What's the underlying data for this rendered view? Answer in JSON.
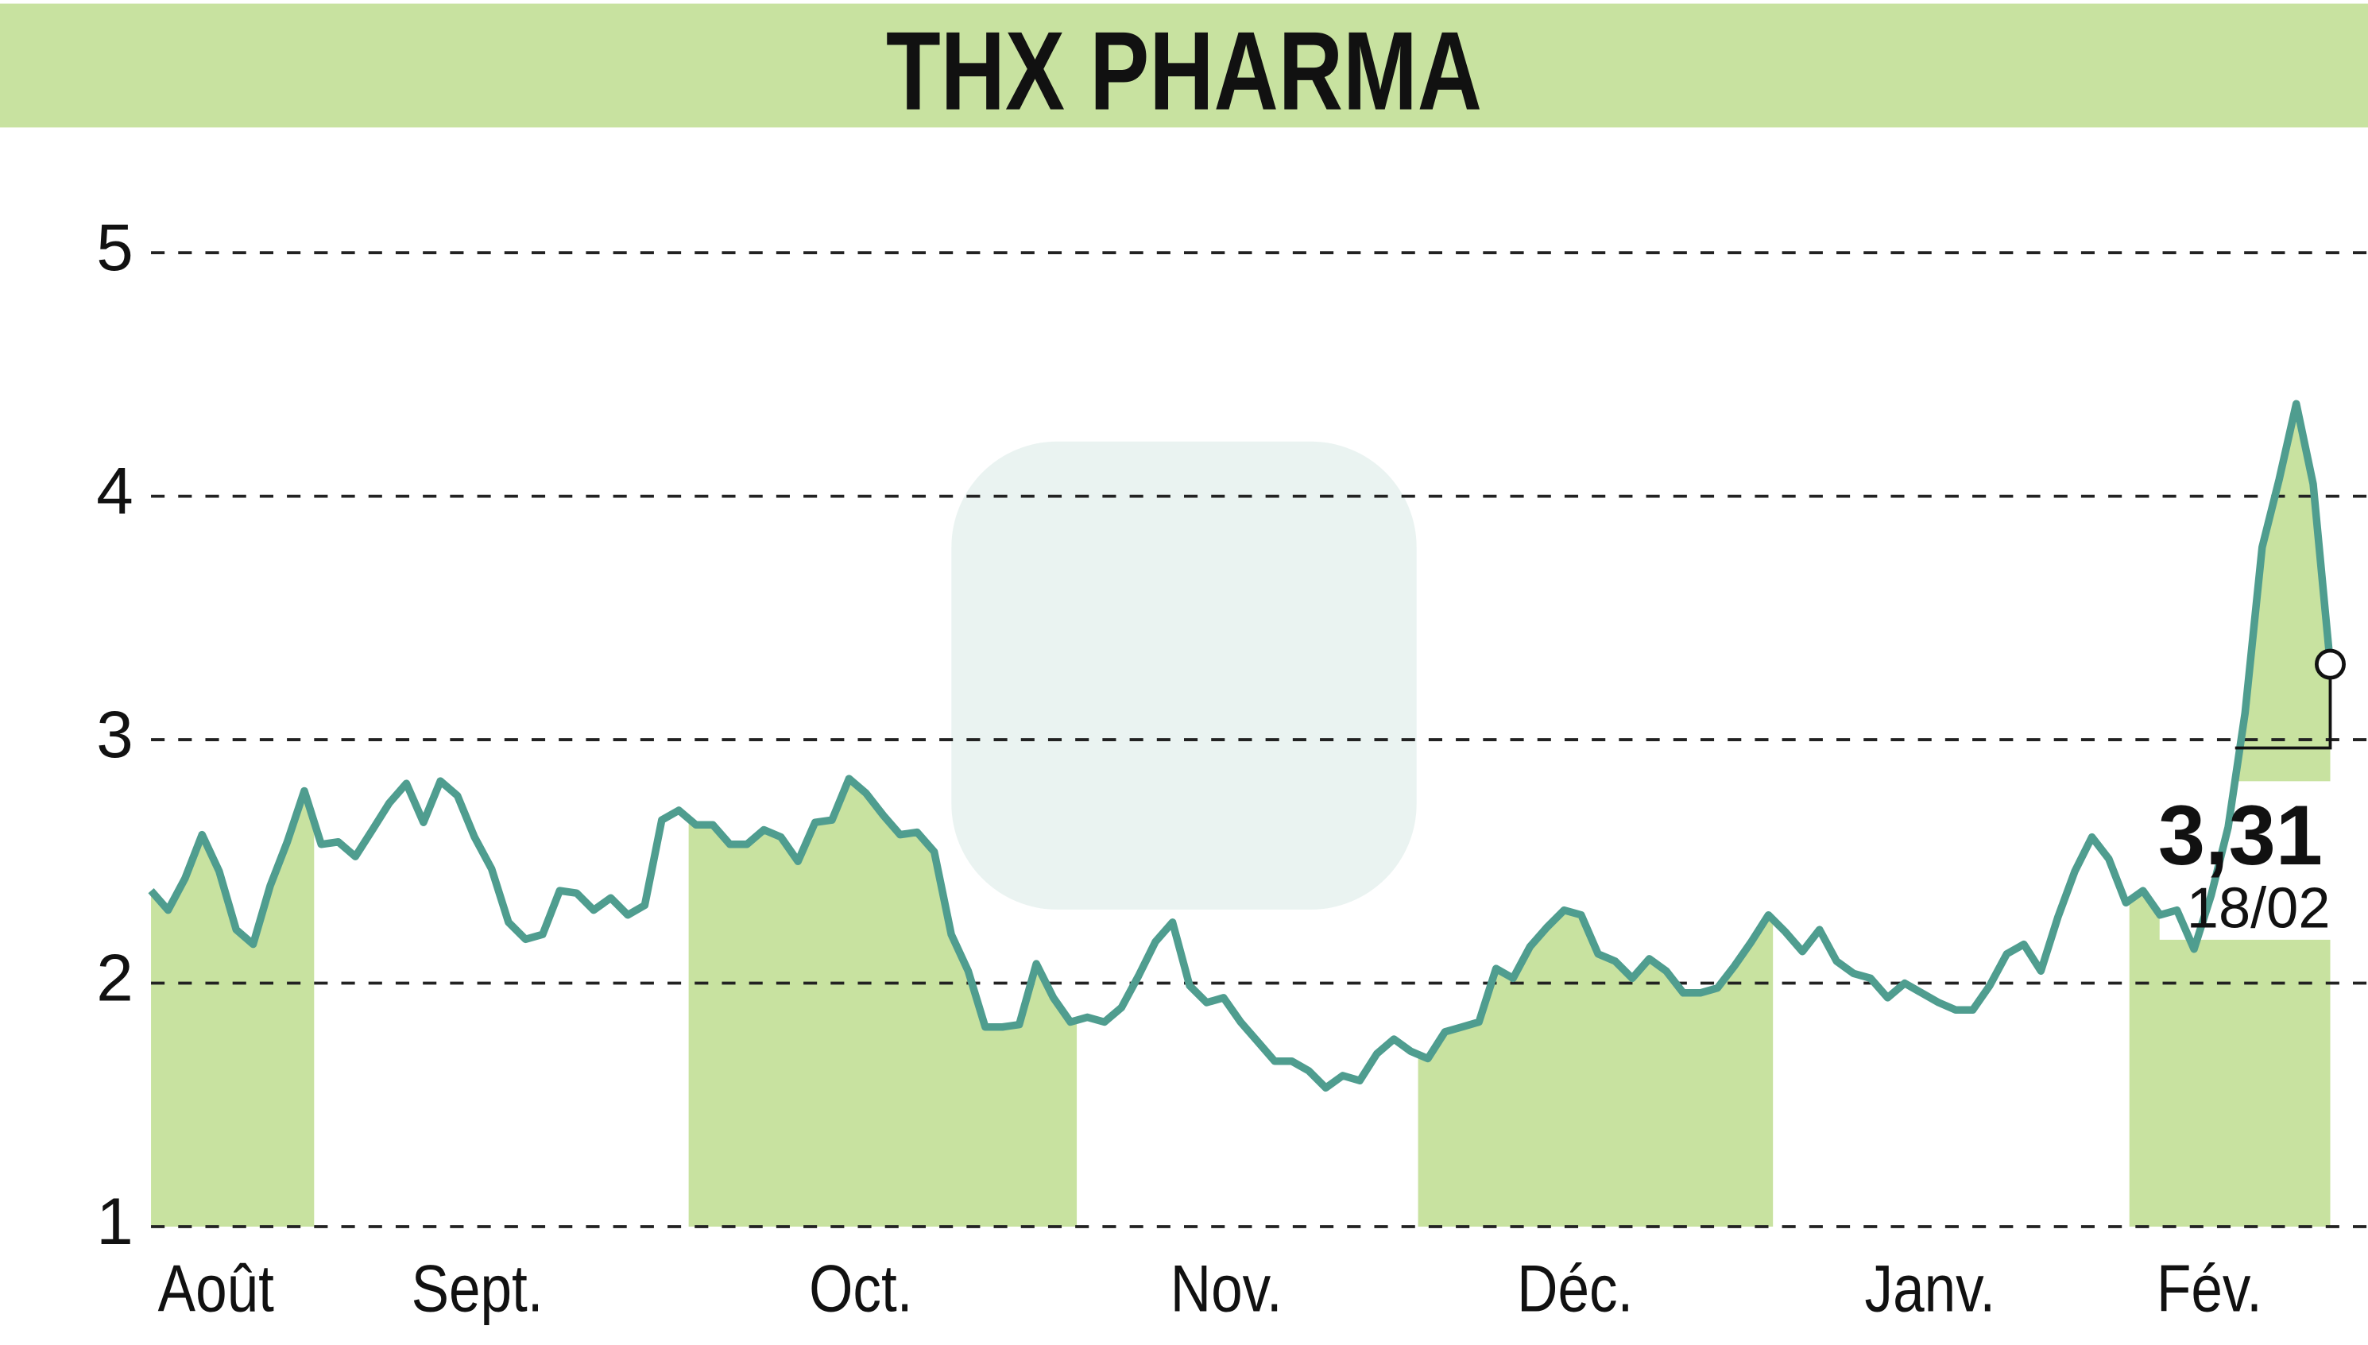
{
  "chart_data": {
    "type": "line",
    "title": "THX PHARMA",
    "months": [
      "Août",
      "Sept.",
      "Oct.",
      "Nov.",
      "Déc.",
      "Janv.",
      "Fév."
    ],
    "ylim": [
      1,
      5
    ],
    "yticks": [
      1,
      2,
      3,
      4,
      5
    ],
    "grid": true,
    "color": "#4f9d8f",
    "shade_color": "#c8e2a0",
    "values": [
      2.38,
      2.3,
      2.43,
      2.61,
      2.46,
      2.22,
      2.16,
      2.4,
      2.58,
      2.79,
      2.57,
      2.58,
      2.52,
      2.63,
      2.74,
      2.82,
      2.66,
      2.83,
      2.77,
      2.6,
      2.47,
      2.25,
      2.18,
      2.2,
      2.38,
      2.37,
      2.3,
      2.35,
      2.28,
      2.32,
      2.67,
      2.71,
      2.65,
      2.65,
      2.57,
      2.57,
      2.63,
      2.6,
      2.5,
      2.66,
      2.67,
      2.84,
      2.78,
      2.69,
      2.61,
      2.62,
      2.54,
      2.2,
      2.05,
      1.82,
      1.82,
      1.83,
      2.08,
      1.94,
      1.84,
      1.86,
      1.84,
      1.9,
      2.03,
      2.17,
      2.25,
      1.99,
      1.92,
      1.94,
      1.84,
      1.76,
      1.68,
      1.68,
      1.64,
      1.57,
      1.62,
      1.6,
      1.71,
      1.77,
      1.72,
      1.69,
      1.8,
      1.82,
      1.84,
      2.06,
      2.02,
      2.15,
      2.23,
      2.3,
      2.28,
      2.12,
      2.09,
      2.02,
      2.1,
      2.05,
      1.96,
      1.96,
      1.98,
      2.07,
      2.17,
      2.28,
      2.21,
      2.13,
      2.22,
      2.09,
      2.04,
      2.02,
      1.94,
      2.0,
      1.96,
      1.92,
      1.89,
      1.89,
      1.99,
      2.12,
      2.16,
      2.05,
      2.27,
      2.46,
      2.6,
      2.51,
      2.33,
      2.38,
      2.28,
      2.3,
      2.14,
      2.36,
      2.64,
      3.11,
      3.79,
      4.07,
      4.38,
      4.05,
      3.31
    ],
    "last_label": "3,31",
    "last_date": "18/02"
  }
}
